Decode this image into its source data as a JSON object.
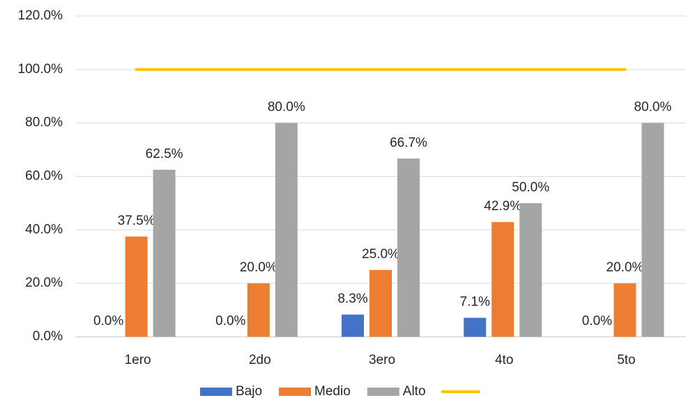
{
  "chart_data": {
    "type": "bar",
    "categories": [
      "1ero",
      "2do",
      "3ero",
      "4to",
      "5to"
    ],
    "series": [
      {
        "name": "Bajo",
        "color": "#4472c4",
        "values": [
          0,
          0,
          8.3,
          7.1,
          0
        ],
        "value_labels": [
          "0.0%",
          "0.0%",
          "8.3%",
          "7.1%",
          "0.0%"
        ]
      },
      {
        "name": "Medio",
        "color": "#ed7d31",
        "values": [
          37.5,
          20,
          25,
          42.9,
          20
        ],
        "value_labels": [
          "37.5%",
          "20.0%",
          "25.0%",
          "42.9%",
          "20.0%"
        ]
      },
      {
        "name": "Alto",
        "color": "#a5a5a5",
        "values": [
          62.5,
          80,
          66.7,
          50,
          80
        ],
        "value_labels": [
          "62.5%",
          "80.0%",
          "66.7%",
          "50.0%",
          "80.0%"
        ]
      },
      {
        "type": "line",
        "color": "#ffc000",
        "values": [
          100,
          100,
          100,
          100,
          100
        ]
      }
    ],
    "ylim": [
      0,
      120
    ],
    "yticks": [
      {
        "value": 0,
        "label": "0.0%"
      },
      {
        "value": 20,
        "label": "20.0%"
      },
      {
        "value": 40,
        "label": "40.0%"
      },
      {
        "value": 60,
        "label": "60.0%"
      },
      {
        "value": 80,
        "label": "80.0%"
      },
      {
        "value": 100,
        "label": "100.0%"
      },
      {
        "value": 120,
        "label": "120.0%"
      }
    ],
    "grid": true,
    "legend": "bottom"
  }
}
